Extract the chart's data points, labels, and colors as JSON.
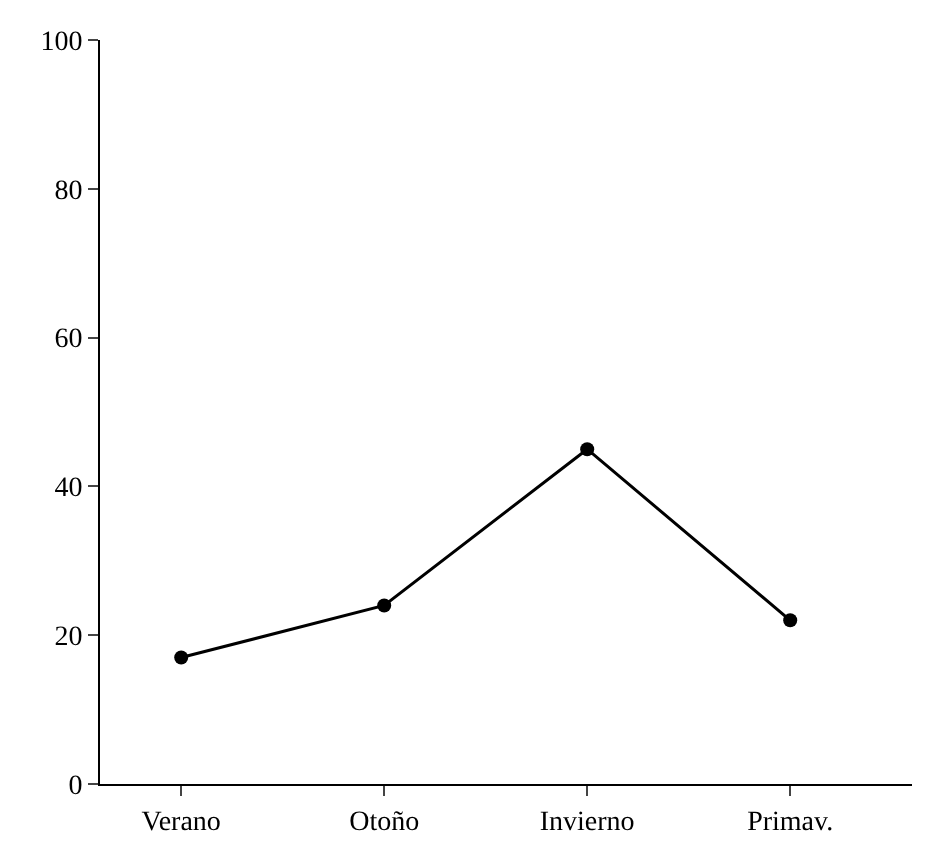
{
  "chart_data": {
    "type": "line",
    "categories": [
      "Verano",
      "Otoño",
      "Invierno",
      "Primav."
    ],
    "series": [
      {
        "color": "#000000",
        "values": [
          17,
          24,
          45,
          22
        ]
      }
    ],
    "ylim": [
      0,
      100
    ],
    "yticks": [
      0,
      20,
      40,
      60,
      80,
      100
    ],
    "marker": "circle",
    "line_style": "solid"
  }
}
